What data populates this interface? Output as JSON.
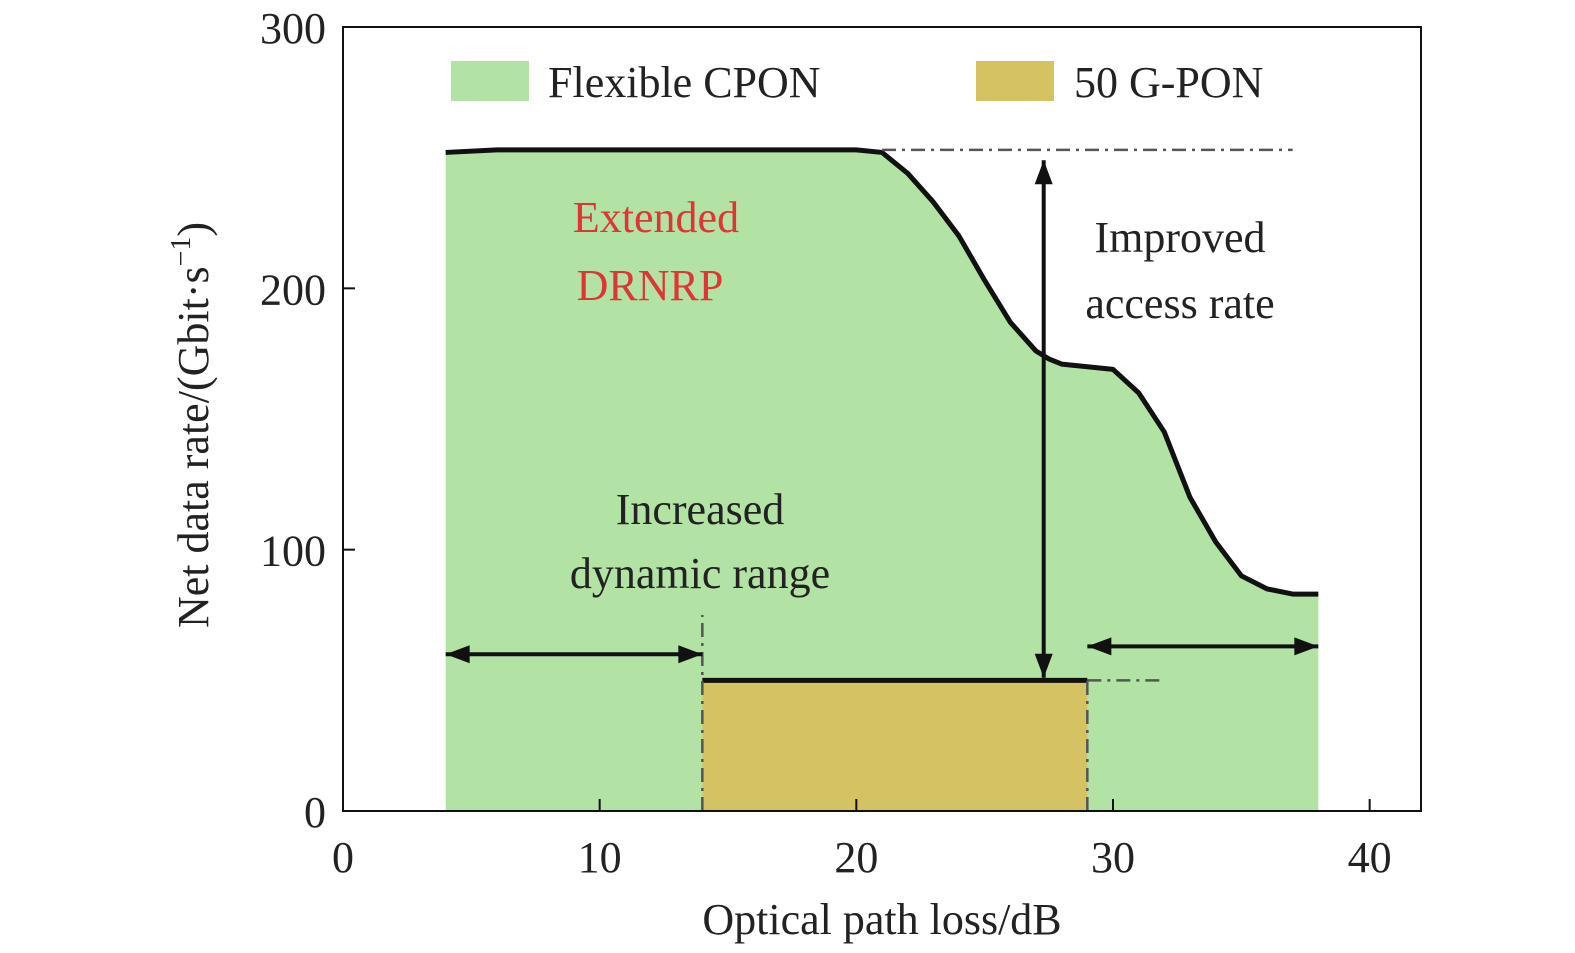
{
  "chart_data": {
    "type": "area",
    "xlabel": "Optical path loss/dB",
    "ylabel": "Net data rate/(Gbit·s",
    "ylabel_unit_sup": "−1",
    "ylabel_close": ")",
    "xlim": [
      0,
      42
    ],
    "ylim": [
      0,
      300
    ],
    "x_ticks": [
      0,
      10,
      20,
      30,
      40
    ],
    "y_ticks": [
      0,
      100,
      200,
      300
    ],
    "x_tick_labels": [
      "0",
      "10",
      "20",
      "30",
      "40"
    ],
    "y_tick_labels": [
      "0",
      "100",
      "200",
      "300"
    ],
    "grid": false,
    "legend_position": "top",
    "series": [
      {
        "name": "Flexible CPON",
        "color": "#b2e3a4",
        "x": [
          4,
          6,
          10,
          15,
          20,
          21,
          22,
          23,
          24,
          25,
          26,
          27,
          27.5,
          28,
          29,
          30,
          31,
          32,
          33,
          34,
          35,
          36,
          37,
          38
        ],
        "y": [
          252,
          253,
          253,
          253,
          253,
          252,
          244,
          233,
          220,
          203,
          187,
          176,
          173,
          171,
          170,
          169,
          160,
          145,
          120,
          103,
          90,
          85,
          83,
          83
        ]
      },
      {
        "name": "50 G-PON",
        "color": "#d5c363",
        "x": [
          14,
          29
        ],
        "y": [
          50,
          50
        ]
      }
    ],
    "annotations": {
      "extended_line1": "Extended",
      "extended_line2": "DRNRP",
      "improved_line1": "Improved",
      "improved_line2": "access rate",
      "increased_line1": "Increased",
      "increased_line2": "dynamic range",
      "annotation_color": "#e03535"
    }
  }
}
